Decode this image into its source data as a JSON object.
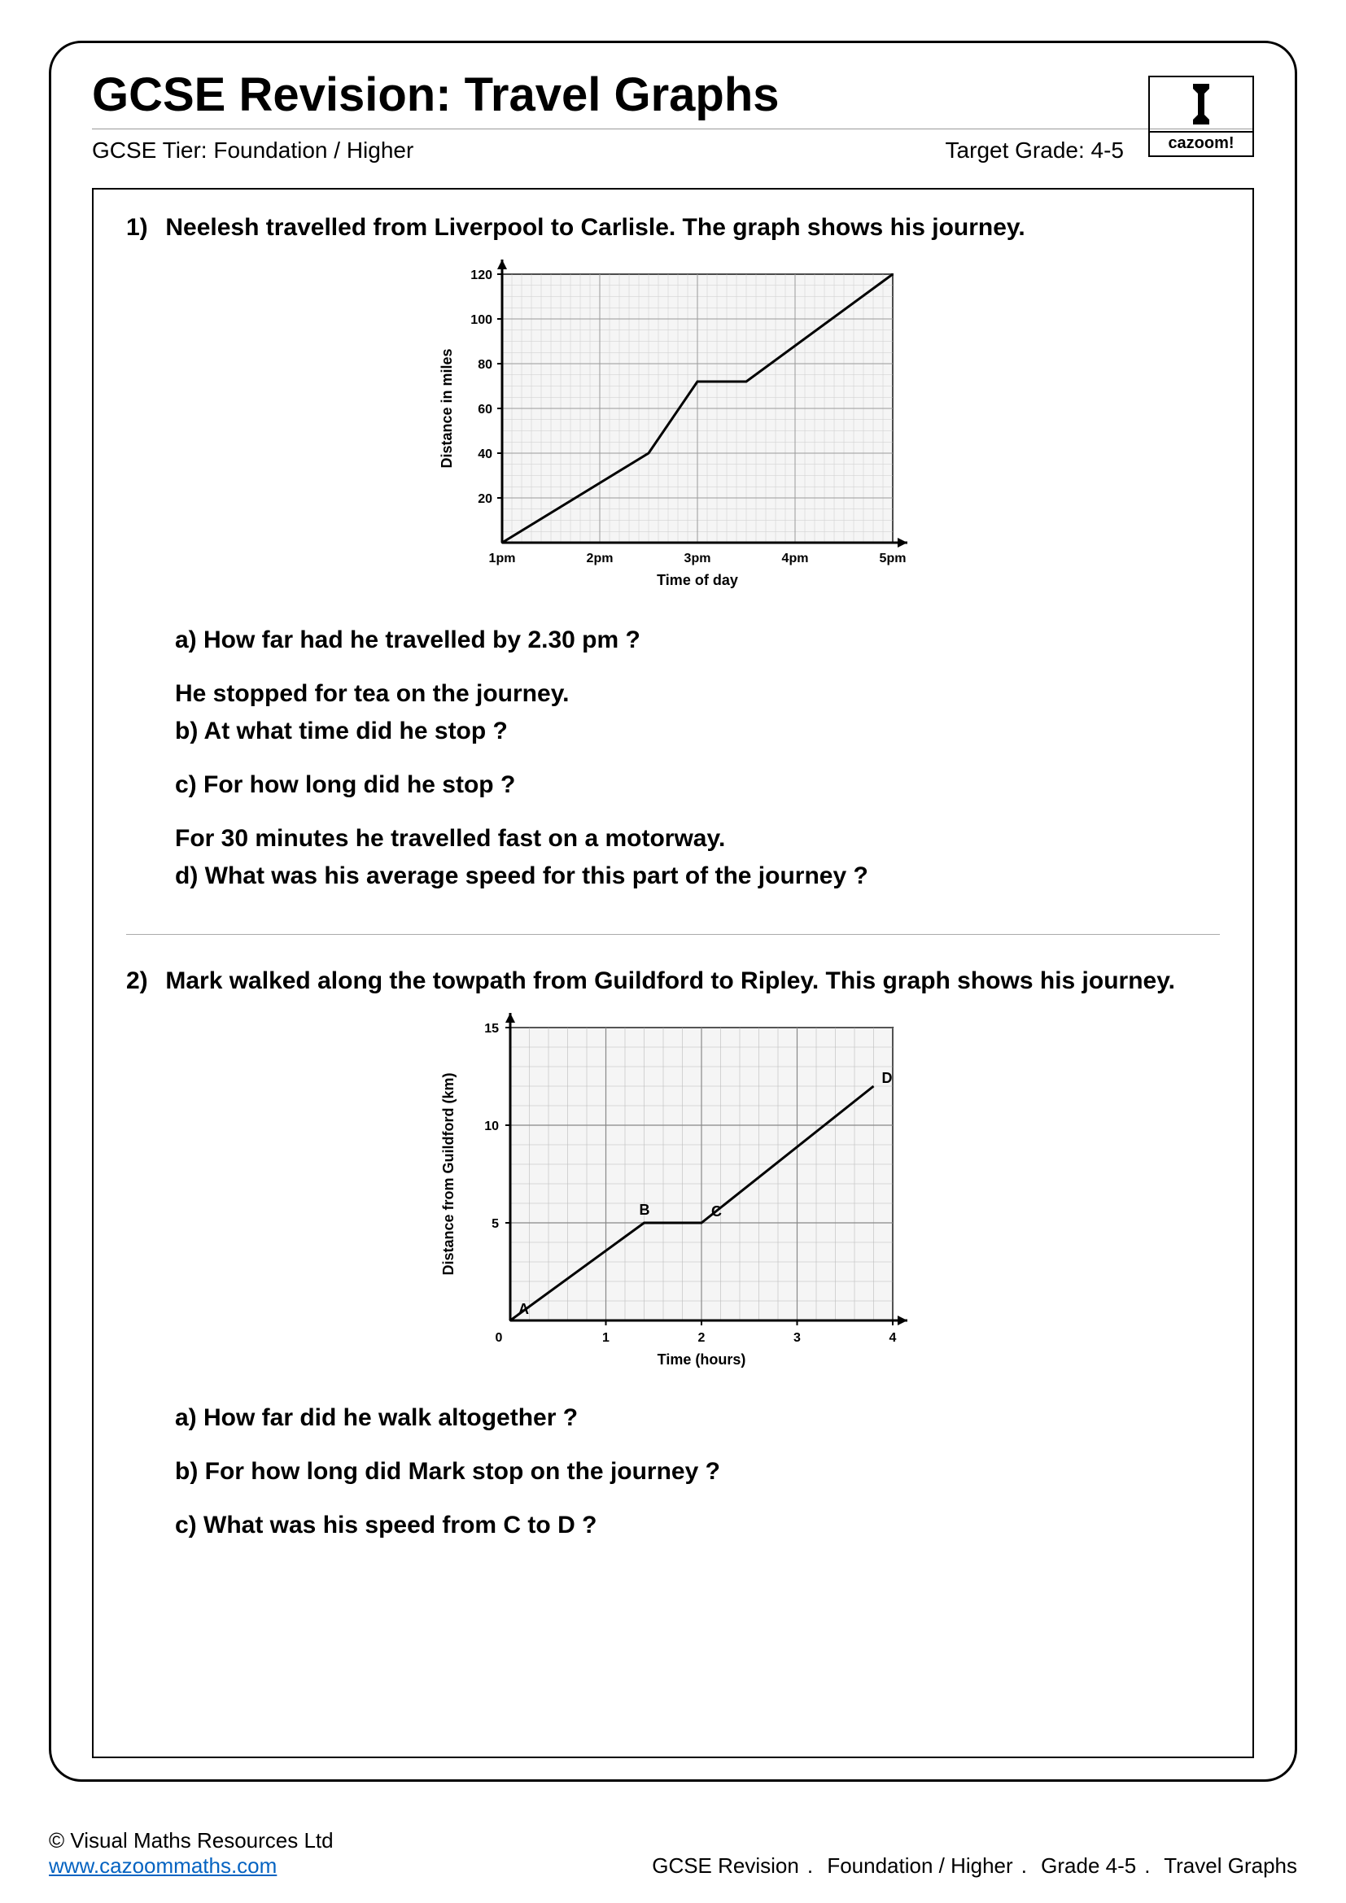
{
  "header": {
    "title": "GCSE Revision: Travel Graphs",
    "tier": "GCSE Tier: Foundation / Higher",
    "grade": "Target Grade: 4-5",
    "logo_text": "cazoom!"
  },
  "q1": {
    "prompt": "Neelesh travelled from Liverpool to Carlisle. The graph shows his journey.",
    "a": "a) How far had he travelled by 2.30 pm ?",
    "context1": "He stopped for tea on the journey.",
    "b": "b) At what time did he stop ?",
    "c": "c) For how long did he stop ?",
    "context2": "For 30 minutes he travelled fast on a motorway.",
    "d": "d) What was his average speed for this part of the journey ?",
    "chart": {
      "type": "line",
      "xlabel": "Time of day",
      "ylabel": "Distance in miles",
      "x_ticks": [
        "1pm",
        "2pm",
        "3pm",
        "4pm",
        "5pm"
      ],
      "y_ticks": [
        20,
        40,
        60,
        80,
        100,
        120
      ],
      "xlim": [
        0,
        4
      ],
      "ylim": [
        0,
        120
      ],
      "points": [
        [
          0,
          0
        ],
        [
          1.5,
          40
        ],
        [
          2,
          72
        ],
        [
          2.5,
          72
        ],
        [
          4,
          120
        ]
      ],
      "line_color": "#000000",
      "line_width": 3,
      "grid_color": "#cccccc",
      "background_color": "#f5f5f5",
      "axis_color": "#000000",
      "label_fontsize": 18,
      "tick_fontsize": 16
    }
  },
  "q2": {
    "prompt": "Mark walked along the towpath from Guildford to Ripley. This graph shows his journey.",
    "a": "a) How far did he walk altogether ?",
    "b": "b) For how long did Mark stop on the journey ?",
    "c": "c) What was his speed from C to D ?",
    "chart": {
      "type": "line",
      "xlabel": "Time (hours)",
      "ylabel": "Distance from Guildford (km)",
      "x_ticks": [
        1,
        2,
        3,
        4
      ],
      "y_ticks": [
        5,
        10,
        15
      ],
      "xlim": [
        0,
        4
      ],
      "ylim": [
        0,
        15
      ],
      "points": [
        [
          0,
          0
        ],
        [
          1.4,
          5
        ],
        [
          2,
          5
        ],
        [
          3.8,
          12
        ]
      ],
      "point_labels": [
        [
          "A",
          0,
          0
        ],
        [
          "B",
          1.4,
          5
        ],
        [
          "C",
          2,
          5
        ],
        [
          "D",
          3.8,
          12
        ]
      ],
      "line_color": "#000000",
      "line_width": 3,
      "grid_color": "#bbbbbb",
      "background_color": "#f5f5f5",
      "axis_color": "#000000",
      "label_fontsize": 18,
      "tick_fontsize": 16
    }
  },
  "footer": {
    "copyright": "© Visual Maths Resources Ltd",
    "url": "www.cazoommaths.com",
    "crumb1": "GCSE Revision",
    "crumb2": "Foundation / Higher",
    "crumb3": "Grade 4-5",
    "crumb4": "Travel Graphs"
  }
}
